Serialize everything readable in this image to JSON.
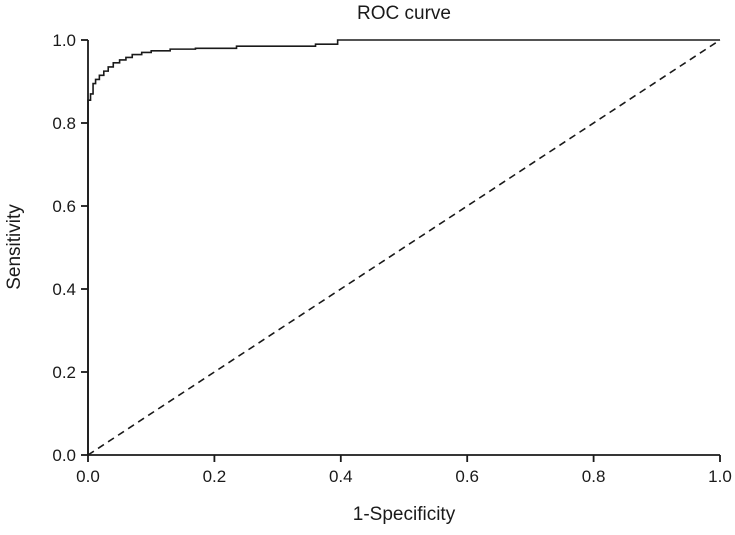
{
  "chart_data": {
    "type": "line",
    "title": "ROC curve",
    "xlabel": "1-Specificity",
    "ylabel": "Sensitivity",
    "xlim": [
      0,
      1
    ],
    "ylim": [
      0,
      1
    ],
    "xticks": [
      0.0,
      0.2,
      0.4,
      0.6,
      0.8,
      1.0
    ],
    "xtick_labels": [
      "0.0",
      "0.2",
      "0.4",
      "0.6",
      "0.8",
      "1.0"
    ],
    "yticks": [
      0.0,
      0.2,
      0.4,
      0.6,
      0.8,
      1.0
    ],
    "ytick_labels": [
      "0.0",
      "0.2",
      "0.4",
      "0.6",
      "0.8",
      "1.0"
    ],
    "grid": false,
    "legend": "none",
    "colors": {
      "line": "#1a1a1a",
      "background": "#ffffff"
    },
    "series": [
      {
        "name": "ROC curve",
        "style": "solid",
        "points": [
          [
            0,
            0
          ],
          [
            0,
            0.855
          ],
          [
            0.004,
            0.855
          ],
          [
            0.004,
            0.87
          ],
          [
            0.008,
            0.87
          ],
          [
            0.008,
            0.895
          ],
          [
            0.012,
            0.895
          ],
          [
            0.012,
            0.905
          ],
          [
            0.018,
            0.905
          ],
          [
            0.018,
            0.915
          ],
          [
            0.025,
            0.915
          ],
          [
            0.025,
            0.925
          ],
          [
            0.032,
            0.925
          ],
          [
            0.032,
            0.935
          ],
          [
            0.04,
            0.935
          ],
          [
            0.04,
            0.945
          ],
          [
            0.05,
            0.945
          ],
          [
            0.05,
            0.952
          ],
          [
            0.06,
            0.952
          ],
          [
            0.06,
            0.958
          ],
          [
            0.07,
            0.958
          ],
          [
            0.07,
            0.965
          ],
          [
            0.085,
            0.965
          ],
          [
            0.085,
            0.97
          ],
          [
            0.1,
            0.97
          ],
          [
            0.1,
            0.974
          ],
          [
            0.13,
            0.974
          ],
          [
            0.13,
            0.978
          ],
          [
            0.17,
            0.978
          ],
          [
            0.17,
            0.98
          ],
          [
            0.235,
            0.98
          ],
          [
            0.235,
            0.985
          ],
          [
            0.36,
            0.985
          ],
          [
            0.36,
            0.99
          ],
          [
            0.395,
            0.99
          ],
          [
            0.395,
            1.0
          ],
          [
            1,
            1
          ]
        ]
      },
      {
        "name": "Reference diagonal",
        "style": "dashed",
        "points": [
          [
            0,
            0
          ],
          [
            1,
            1
          ]
        ]
      }
    ]
  }
}
